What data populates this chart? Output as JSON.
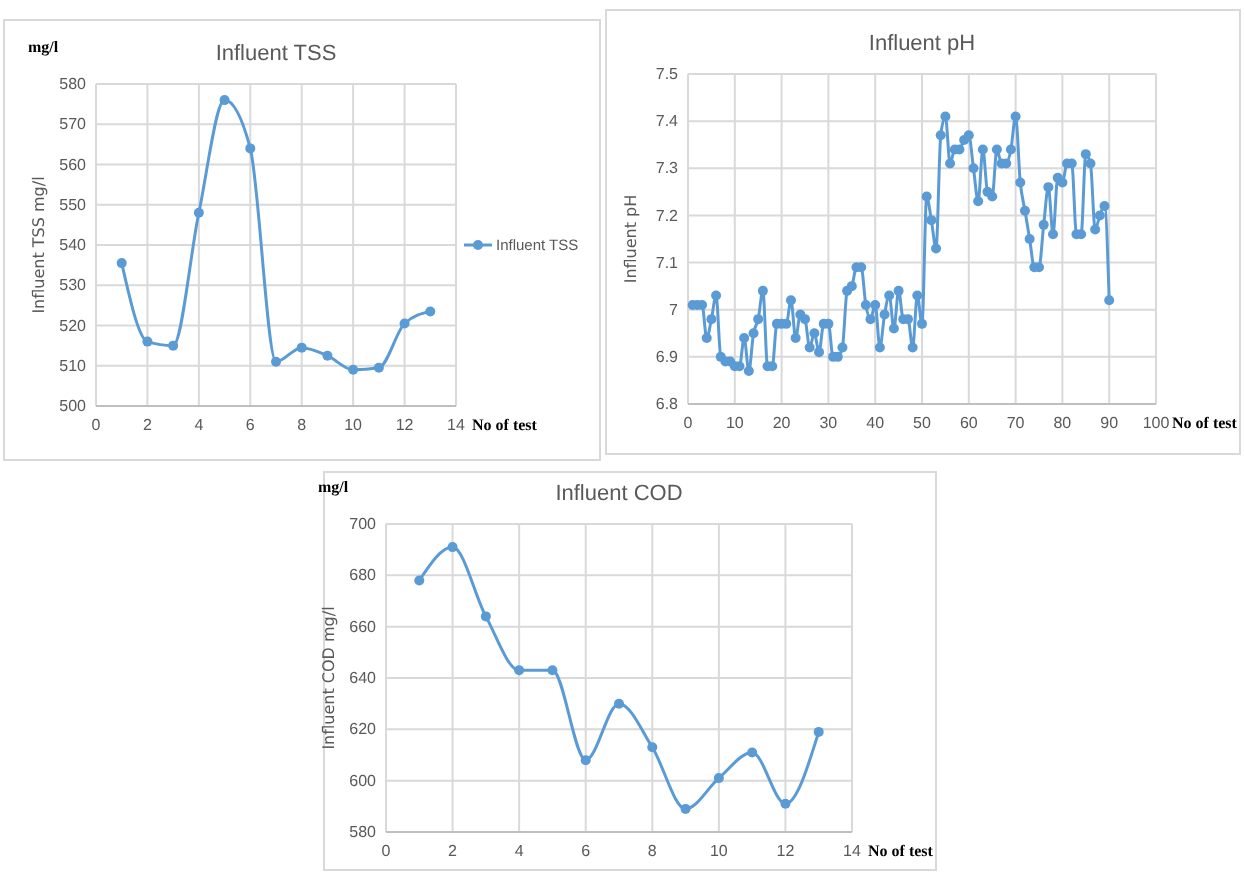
{
  "chart_data": [
    {
      "type": "line",
      "title": "Influent TSS",
      "xlabel": "No of test",
      "ylabel": "Influent TSS mg/l",
      "annotations": [
        "mg/l"
      ],
      "x": [
        1,
        2,
        3,
        4,
        5,
        6,
        7,
        8,
        9,
        10,
        11,
        12,
        13
      ],
      "series": [
        {
          "name": "Influent TSS",
          "color": "#5b9bd5",
          "values": [
            535.5,
            516,
            515,
            548,
            576,
            564,
            511,
            514.5,
            512.5,
            509,
            509.5,
            520.5,
            523.5
          ]
        }
      ],
      "xlim": [
        0,
        14
      ],
      "xticks": [
        0,
        2,
        4,
        6,
        8,
        10,
        12,
        14
      ],
      "ylim": [
        500,
        580
      ],
      "yticks": [
        500,
        510,
        520,
        530,
        540,
        550,
        560,
        570,
        580
      ],
      "grid": true,
      "marker": "circle",
      "legend": "right"
    },
    {
      "type": "line",
      "title": "Influent pH",
      "xlabel": "No of test",
      "ylabel": "Influent pH",
      "x": [
        1,
        2,
        3,
        4,
        5,
        6,
        7,
        8,
        9,
        10,
        11,
        12,
        13,
        14,
        15,
        16,
        17,
        18,
        19,
        20,
        21,
        22,
        23,
        24,
        25,
        26,
        27,
        28,
        29,
        30,
        31,
        32,
        33,
        34,
        35,
        36,
        37,
        38,
        39,
        40,
        41,
        42,
        43,
        44,
        45,
        46,
        47,
        48,
        49,
        50,
        51,
        52,
        53,
        54,
        55,
        56,
        57,
        58,
        59,
        60,
        61,
        62,
        63,
        64,
        65,
        66,
        67,
        68,
        69,
        70,
        71,
        72,
        73,
        74,
        75,
        76,
        77,
        78,
        79,
        80,
        81,
        82,
        83,
        84,
        85,
        86,
        87,
        88,
        89,
        90
      ],
      "series": [
        {
          "color": "#5b9bd5",
          "values": [
            7.01,
            7.01,
            7.01,
            6.94,
            6.98,
            7.03,
            6.9,
            6.89,
            6.89,
            6.88,
            6.88,
            6.94,
            6.87,
            6.95,
            6.98,
            7.04,
            6.88,
            6.88,
            6.97,
            6.97,
            6.97,
            7.02,
            6.94,
            6.99,
            6.98,
            6.92,
            6.95,
            6.91,
            6.97,
            6.97,
            6.9,
            6.9,
            6.92,
            7.04,
            7.05,
            7.09,
            7.09,
            7.01,
            6.98,
            7.01,
            6.92,
            6.99,
            7.03,
            6.96,
            7.04,
            6.98,
            6.98,
            6.92,
            7.03,
            6.97,
            7.24,
            7.19,
            7.13,
            7.37,
            7.41,
            7.31,
            7.34,
            7.34,
            7.36,
            7.37,
            7.3,
            7.23,
            7.34,
            7.25,
            7.24,
            7.34,
            7.31,
            7.31,
            7.34,
            7.41,
            7.27,
            7.21,
            7.15,
            7.09,
            7.09,
            7.18,
            7.26,
            7.16,
            7.28,
            7.27,
            7.31,
            7.31,
            7.16,
            7.16,
            7.33,
            7.31,
            7.17,
            7.2,
            7.22,
            7.02
          ]
        }
      ],
      "xlim": [
        0,
        100
      ],
      "xticks": [
        0,
        10,
        20,
        30,
        40,
        50,
        60,
        70,
        80,
        90,
        100
      ],
      "ylim": [
        6.8,
        7.5
      ],
      "yticks": [
        {
          "value": 6.8,
          "label": "6.8"
        },
        {
          "value": 6.9,
          "label": "6.9"
        },
        {
          "value": 7,
          "label": "7"
        },
        {
          "value": 7.1,
          "label": "7.1"
        },
        {
          "value": 7.2,
          "label": "7.2"
        },
        {
          "value": 7.3,
          "label": "7.3"
        },
        {
          "value": 7.4,
          "label": "7.4"
        },
        {
          "value": 7.5,
          "label": "7.5"
        }
      ],
      "grid": true,
      "marker": "circle"
    },
    {
      "type": "line",
      "title": "Influent COD",
      "xlabel": "No of test",
      "ylabel": "Influent COD mg/l",
      "annotations": [
        "mg/l"
      ],
      "x": [
        1,
        2,
        3,
        4,
        5,
        6,
        7,
        8,
        9,
        10,
        11,
        12,
        13
      ],
      "series": [
        {
          "color": "#5b9bd5",
          "values": [
            678,
            691,
            664,
            643,
            643,
            608,
            630,
            613,
            589,
            601,
            611,
            591,
            619
          ]
        }
      ],
      "xlim": [
        0,
        14
      ],
      "xticks": [
        0,
        2,
        4,
        6,
        8,
        10,
        12,
        14
      ],
      "ylim": [
        580,
        700
      ],
      "yticks": [
        580,
        600,
        620,
        640,
        660,
        680,
        700
      ],
      "grid": true,
      "marker": "circle"
    }
  ]
}
